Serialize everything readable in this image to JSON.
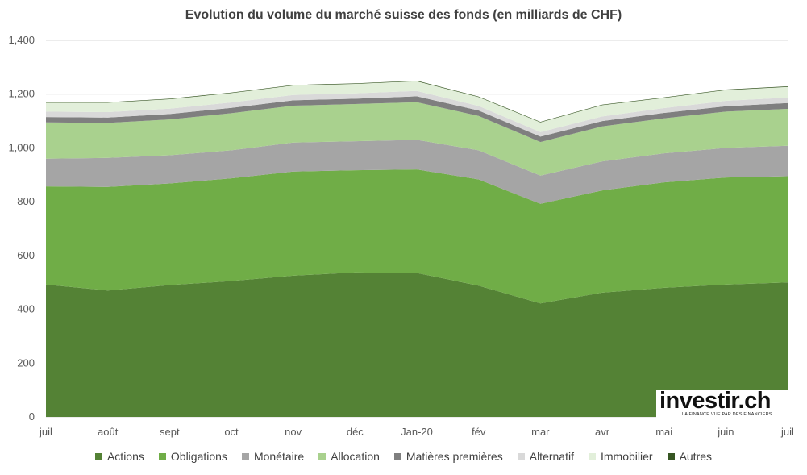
{
  "chart_data": {
    "type": "area",
    "stacked": true,
    "title": "Evolution du volume du marché suisse des fonds (en milliards de CHF)",
    "xlabel": "",
    "ylabel": "",
    "ylim": [
      0,
      1400
    ],
    "y_ticks": [
      0,
      200,
      400,
      600,
      800,
      1000,
      1200,
      1400
    ],
    "y_tick_labels": [
      "0",
      "200",
      "400",
      "600",
      "800",
      "1,000",
      "1,200",
      "1,400"
    ],
    "grid": true,
    "legend_position": "bottom",
    "categories": [
      "juil",
      "août",
      "sept",
      "oct",
      "nov",
      "déc",
      "Jan-20",
      "fév",
      "mar",
      "avr",
      "mai",
      "juin",
      "juil"
    ],
    "series": [
      {
        "name": "Actions",
        "color": "#548235",
        "values": [
          492,
          470,
          490,
          505,
          525,
          537,
          535,
          488,
          422,
          462,
          480,
          492,
          500
        ]
      },
      {
        "name": "Obligations",
        "color": "#70AD47",
        "values": [
          365,
          385,
          378,
          382,
          387,
          380,
          385,
          395,
          370,
          380,
          392,
          398,
          395
        ]
      },
      {
        "name": "Monétaire",
        "color": "#A5A5A5",
        "values": [
          103,
          108,
          105,
          104,
          108,
          108,
          110,
          108,
          105,
          108,
          108,
          110,
          113
        ]
      },
      {
        "name": "Allocation",
        "color": "#A9D18E",
        "values": [
          135,
          130,
          133,
          138,
          137,
          138,
          140,
          128,
          125,
          130,
          130,
          135,
          137
        ]
      },
      {
        "name": "Matières premières",
        "color": "#7F7F7F",
        "values": [
          20,
          20,
          20,
          20,
          20,
          20,
          22,
          20,
          20,
          20,
          20,
          20,
          22
        ]
      },
      {
        "name": "Alternatif",
        "color": "#D9D9D9",
        "values": [
          20,
          20,
          20,
          20,
          20,
          20,
          20,
          17,
          17,
          17,
          18,
          20,
          20
        ]
      },
      {
        "name": "Immobilier",
        "color": "#E2EFDA",
        "values": [
          33,
          35,
          35,
          35,
          35,
          35,
          36,
          33,
          36,
          42,
          38,
          40,
          40
        ]
      },
      {
        "name": "Autres",
        "color": "#375623",
        "values": [
          2,
          2,
          2,
          2,
          2,
          2,
          2,
          2,
          2,
          2,
          2,
          2,
          2
        ]
      }
    ]
  },
  "logo": {
    "text": "investir.ch",
    "tagline": "LA FINANCE VUE PAR DES FINANCIERS"
  }
}
